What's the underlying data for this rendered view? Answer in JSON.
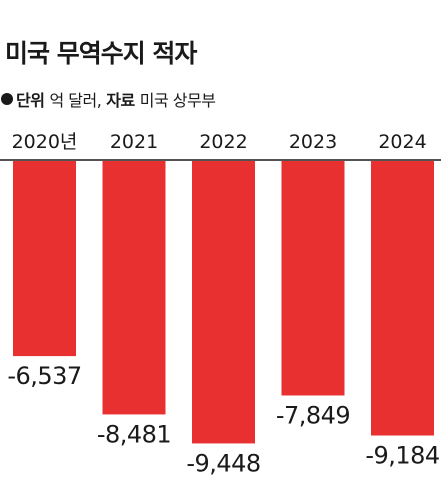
{
  "header": {
    "title": "미국 무역수지 적자",
    "unit_label": "단위",
    "unit_value": "억 달러,",
    "source_label": "자료",
    "source_value": "미국 상무부"
  },
  "colors": {
    "bar": "#e83030",
    "axis": "#1a1a1a",
    "text": "#1a1a1a"
  },
  "chart_data": {
    "type": "bar",
    "title": "미국 무역수지 적자",
    "categories": [
      "2020년",
      "2021",
      "2022",
      "2023",
      "2024"
    ],
    "values": [
      -6537,
      -8481,
      -9448,
      -7849,
      -9184
    ],
    "data_labels": [
      "-6,537",
      "-8,481",
      "-9,448",
      "-7,849",
      "-9,184"
    ],
    "ylim": [
      -10000,
      0
    ],
    "grid": false,
    "legend": "none"
  }
}
